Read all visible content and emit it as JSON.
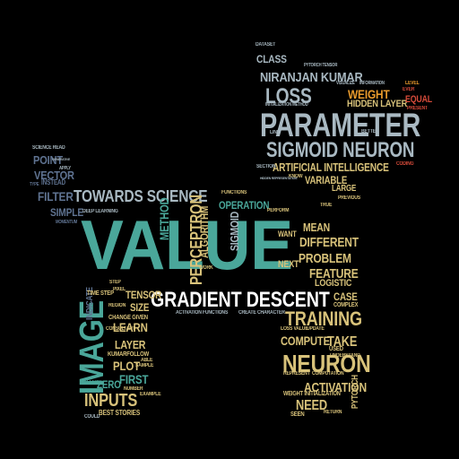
{
  "colors": {
    "background": "#000000",
    "teal": "#4aa79a",
    "tan": "#d8c27a",
    "gray": "#a9b9c2",
    "navy": "#5f7391",
    "white": "#ffffff",
    "orange": "#e89a2c",
    "red": "#d64b3a"
  },
  "words": {
    "value": "VALUE",
    "gradient_descent": "GRADIENT DESCENT",
    "parameter": "PARAMETER",
    "sigmoid_neuron": "SIGMOID NEURON",
    "towards_science": "TOWARDS SCIENCE",
    "image": "IMAGE",
    "neuron": "NEURON",
    "training": "TRAINING",
    "inputs": "INPUTS",
    "niranjan_kumar": "NIRANJAN KUMAR",
    "loss": "LOSS",
    "weight": "WEIGHT",
    "hidden_layer": "HIDDEN LAYER",
    "artificial_intelligence": "ARTIFICIAL INTELLIGENCE",
    "variable": "VARIABLE",
    "large": "LARGE",
    "perceptron": "PERCEPTRON",
    "algorithm": "ALGORITHM",
    "method": "METHOD",
    "sigmoid": "SIGMOID",
    "operation": "OPERATION",
    "mean": "MEAN",
    "different": "DIFFERENT",
    "problem": "PROBLEM",
    "feature": "FEATURE",
    "logistic": "LOGISTIC",
    "case": "CASE",
    "complex": "COMPLEX",
    "compute": "COMPUTE",
    "take": "TAKE",
    "activation": "ACTIVATION",
    "need": "NEED",
    "pytorch": "PYTORCH",
    "point": "POINT",
    "vector": "VECTOR",
    "filter": "FILTER",
    "simple": "SIMPLE",
    "tensor": "TENSOR",
    "size": "SIZE",
    "learn": "LEARN",
    "layer": "LAYER",
    "plot": "PLOT",
    "first": "FIRST",
    "zero": "ZERO",
    "best_stories": "BEST STORIES",
    "class": "CLASS",
    "dataset": "DATASET",
    "equal": "EQUAL",
    "next": "NEXT",
    "want": "WANT",
    "indicate": "INDICATE",
    "instead": "INSTEAD",
    "functions": "FUNCTIONS",
    "perform": "PERFORM",
    "science_read": "SCIENCE READ",
    "activation_functions": "ACTIVATION FUNCTIONS",
    "create": "CREATE",
    "character": "CHARACTER",
    "weight_initialization": "WEIGHT INITIALIZATION",
    "level": "LEVEL",
    "return": "RETURN",
    "seen": "SEEN",
    "true": "TRUE",
    "previous": "PREVIOUS",
    "coding": "CODING",
    "section": "SECTION",
    "know": "KNOW",
    "line": "LINE",
    "better": "BETTER",
    "present": "PRESENT",
    "ever": "EVER",
    "visualize": "VISUALIZE",
    "information": "INFORMATION",
    "initialization_method": "INITIALIZATION METHOD",
    "pytorch_tensor": "PYTORCH TENSOR",
    "level_1": "LEVEL",
    "method_1": "METHOD",
    "time_step": "TIME STEP",
    "change_given": "CHANGE GIVEN",
    "region": "REGION",
    "pixel": "PIXEL",
    "step": "STEP",
    "deep_learning": "DEEP LEARNING",
    "work": "WORK",
    "kumarfollow": "KUMARFOLLOW",
    "consultant": "CONSULTANT",
    "used": "USED",
    "understand": "UNDERSTAND",
    "loss_value": "LOSS VALUE",
    "update": "UPDATE",
    "represent": "REPRESENT",
    "computation": "COMPUTATION",
    "number": "NUMBER",
    "called": "CALLED",
    "could": "COULD",
    "sample": "SAMPLE",
    "able": "ABLE",
    "example": "EXAMPLE",
    "hidden_representation": "HIDDEN REPRESENTATION",
    "generative": "GENERATIVE",
    "apply": "APPLY",
    "type": "TYPE",
    "momentum": "MOMENTUM"
  }
}
